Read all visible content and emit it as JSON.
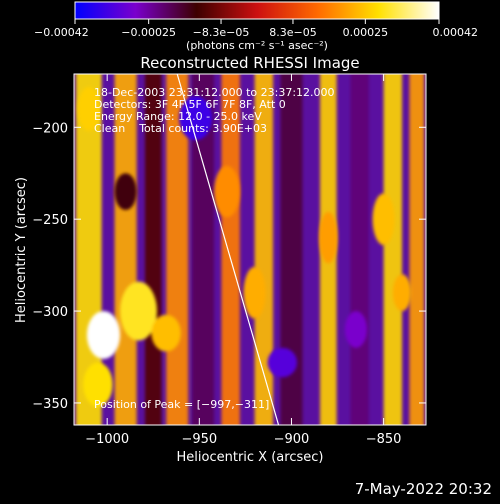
{
  "window": {
    "timestamp": "7-May-2022 20:32"
  },
  "chart_data": {
    "type": "heatmap",
    "title": "Reconstructed RHESSI Image",
    "xlabel": "Heliocentric X (arcsec)",
    "ylabel": "Heliocentric Y (arcsec)",
    "xlim": [
      -1018,
      -827
    ],
    "ylim": [
      -362,
      -171
    ],
    "x_ticks": [
      -1000,
      -950,
      -900,
      -850
    ],
    "y_ticks": [
      -350,
      -300,
      -250,
      -200
    ],
    "x_tick_labels": [
      "−1000",
      "−950",
      "−900",
      "−850"
    ],
    "y_tick_labels": [
      "−350",
      "−300",
      "−250",
      "−200"
    ],
    "colorbar": {
      "min": -0.00042,
      "max": 0.00042,
      "ticks": [
        -0.00042,
        -0.00025,
        -8.3e-05,
        8.3e-05,
        0.00025,
        0.00042
      ],
      "tick_labels": [
        "−0.00042",
        "−0.00025",
        "−8.3e−05",
        "8.3e−05",
        "0.00025",
        "0.00042"
      ],
      "unit_label": "(photons cm⁻² s⁻¹ asec⁻²)",
      "colormap": [
        "#0000ff",
        "#7a00cc",
        "#3d0000",
        "#cc1010",
        "#ff6a00",
        "#ffe000",
        "#ffffff"
      ]
    },
    "annotations": [
      "18-Dec-2003 23:31:12.000 to 23:37:12.000",
      "Detectors: 3F 4F 5F 6F 7F 8F, Att 0",
      "Energy Range: 12.0 - 25.0 keV",
      "Clean    Total counts: 3.90E+03"
    ],
    "peak_label": "Position of Peak = [−997,−311]",
    "peak": [
      -997,
      -311
    ],
    "limb_line": [
      [
        -962,
        -171
      ],
      [
        -907,
        -362
      ]
    ],
    "grid": false,
    "columns": [
      {
        "x": -1010,
        "w": 14,
        "v": 0.00028
      },
      {
        "x": -990,
        "w": 12,
        "v": 0.00022
      },
      {
        "x": -975,
        "w": 9,
        "v": -0.00012
      },
      {
        "x": -962,
        "w": 12,
        "v": 0.00018
      },
      {
        "x": -948,
        "w": 12,
        "v": -0.0002
      },
      {
        "x": -933,
        "w": 10,
        "v": 0.00016
      },
      {
        "x": -915,
        "w": 10,
        "v": 0.00024
      },
      {
        "x": -900,
        "w": 12,
        "v": -0.00018
      },
      {
        "x": -880,
        "w": 9,
        "v": 0.00026
      },
      {
        "x": -863,
        "w": 10,
        "v": -0.00022
      },
      {
        "x": -845,
        "w": 10,
        "v": 0.00027
      },
      {
        "x": -832,
        "w": 8,
        "v": 0.0002
      }
    ],
    "blobs": [
      {
        "x": -1002,
        "y": -313,
        "rx": 9,
        "ry": 13,
        "v": 0.00042
      },
      {
        "x": -983,
        "y": -300,
        "rx": 10,
        "ry": 16,
        "v": 0.0003
      },
      {
        "x": -968,
        "y": -312,
        "rx": 8,
        "ry": 10,
        "v": 0.00024
      },
      {
        "x": -1005,
        "y": -340,
        "rx": 8,
        "ry": 12,
        "v": 0.00028
      },
      {
        "x": -1010,
        "y": -190,
        "rx": 6,
        "ry": 12,
        "v": 0.00026
      },
      {
        "x": -920,
        "y": -290,
        "rx": 6,
        "ry": 14,
        "v": 0.00022
      },
      {
        "x": -935,
        "y": -235,
        "rx": 7,
        "ry": 14,
        "v": 0.00018
      },
      {
        "x": -952,
        "y": -195,
        "rx": 9,
        "ry": 12,
        "v": -0.00035
      },
      {
        "x": -905,
        "y": -328,
        "rx": 8,
        "ry": 8,
        "v": -0.00032
      },
      {
        "x": -865,
        "y": -310,
        "rx": 6,
        "ry": 10,
        "v": -0.00028
      },
      {
        "x": -850,
        "y": -250,
        "rx": 6,
        "ry": 14,
        "v": 0.00024
      },
      {
        "x": -840,
        "y": -290,
        "rx": 5,
        "ry": 10,
        "v": 0.00022
      },
      {
        "x": -880,
        "y": -260,
        "rx": 5,
        "ry": 14,
        "v": 0.0002
      },
      {
        "x": -990,
        "y": -235,
        "rx": 6,
        "ry": 10,
        "v": -0.00015
      }
    ]
  }
}
